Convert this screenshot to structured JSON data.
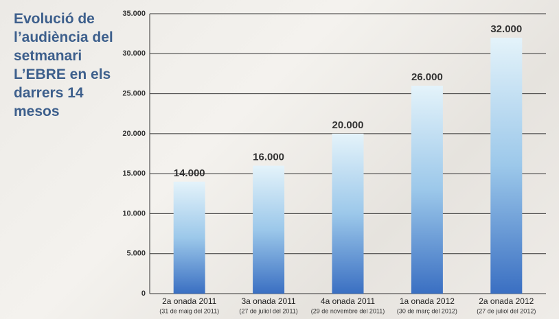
{
  "chart_data": {
    "type": "bar",
    "title": "Evolució de l’audiència del setmanari L’EBRE en els darrers 14 mesos",
    "categories": [
      "2a onada 2011",
      "3a onada 2011",
      "4a onada 2011",
      "1a onada 2012",
      "2a onada 2012"
    ],
    "category_dates": [
      "(31 de maig del 2011)",
      "(27 de juliol del 2011)",
      "(29 de novembre del 2011)",
      "(30 de març del 2012)",
      "(27 de juliol del 2012)"
    ],
    "values": [
      14000,
      16000,
      20000,
      26000,
      32000
    ],
    "value_labels": [
      "14.000",
      "16.000",
      "20.000",
      "26.000",
      "32.000"
    ],
    "color": "#3a6fc2",
    "ylim": [
      0,
      35000
    ],
    "yticks": [
      0,
      {
        "value": 5000,
        "label": "5.000"
      },
      {
        "value": 10000,
        "label": "10.000"
      },
      {
        "value": 15000,
        "label": "15.000"
      },
      {
        "value": 20000,
        "label": "20.000"
      },
      {
        "value": 25000,
        "label": "25.000"
      },
      {
        "value": 30000,
        "label": "30.000"
      },
      {
        "value": 35000,
        "label": "35.000"
      }
    ],
    "grid": true
  }
}
